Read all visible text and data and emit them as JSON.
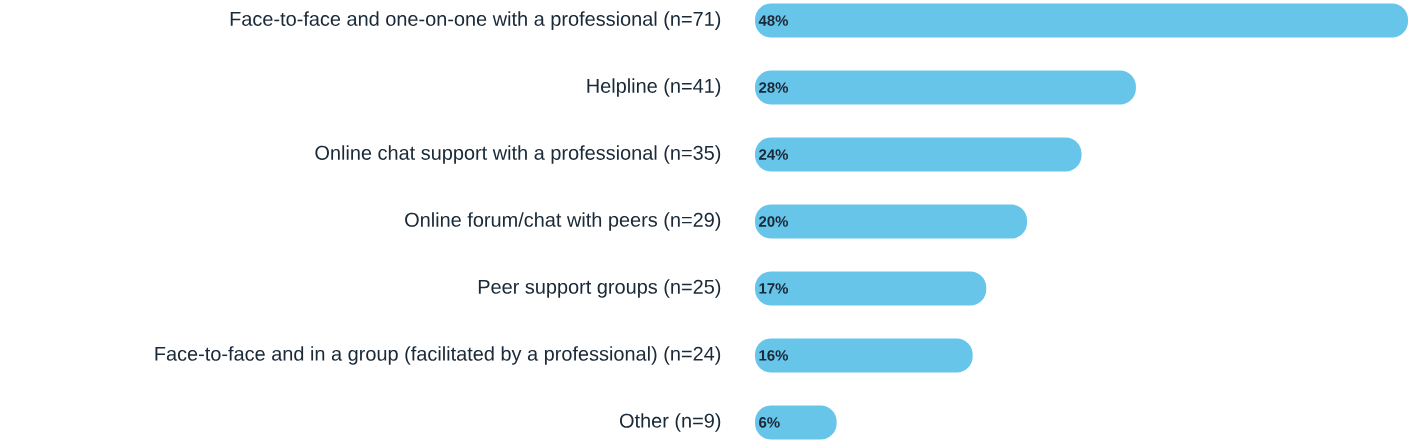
{
  "chart_data": {
    "type": "bar",
    "orientation": "horizontal",
    "categories": [
      "Face-to-face and one-on-one with a professional (n=71)",
      "Helpline (n=41)",
      "Online chat support with a professional (n=35)",
      "Online forum/chat with peers (n=29)",
      "Peer support groups (n=25)",
      "Face-to-face and in a group (facilitated by a professional) (n=24)",
      "Other (n=9)"
    ],
    "values": [
      48,
      28,
      24,
      20,
      17,
      16,
      6
    ],
    "value_labels": [
      "48%",
      "28%",
      "24%",
      "20%",
      "17%",
      "16%",
      "6%"
    ],
    "color": "#67c5ea"
  }
}
